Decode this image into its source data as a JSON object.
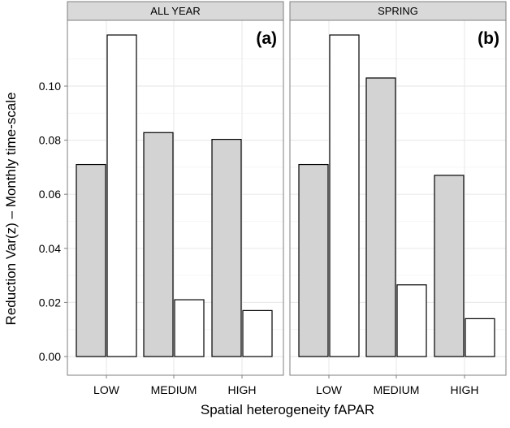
{
  "chart_data": {
    "type": "bar",
    "ylabel": "Reduction Var(z) – Monthly time-scale",
    "xlabel": "Spatial heterogeneity fAPAR",
    "ylim": [
      0,
      0.12
    ],
    "yticks": [
      0.0,
      0.02,
      0.04,
      0.06,
      0.08,
      0.1
    ],
    "ytick_labels": [
      "0.00",
      "0.02",
      "0.04",
      "0.06",
      "0.08",
      "0.10"
    ],
    "categories": [
      "LOW",
      "MEDIUM",
      "HIGH"
    ],
    "grid": true,
    "colors": {
      "grey_bar": "#d3d3d3",
      "white_bar": "#ffffff",
      "strip": "#d9d9d9",
      "gridline": "#ebebeb",
      "frame": "#7f7f7f"
    },
    "panels": [
      {
        "strip": "ALL YEAR",
        "tag": "(a)",
        "series": [
          {
            "fill": "#d3d3d3",
            "values": [
              0.071,
              0.0828,
              0.0803
            ]
          },
          {
            "fill": "#ffffff",
            "values": [
              0.1189,
              0.021,
              0.017
            ]
          }
        ]
      },
      {
        "strip": "SPRING",
        "tag": "(b)",
        "series": [
          {
            "fill": "#d3d3d3",
            "values": [
              0.071,
              0.103,
              0.067
            ]
          },
          {
            "fill": "#ffffff",
            "values": [
              0.1189,
              0.0265,
              0.014
            ]
          }
        ]
      }
    ]
  }
}
